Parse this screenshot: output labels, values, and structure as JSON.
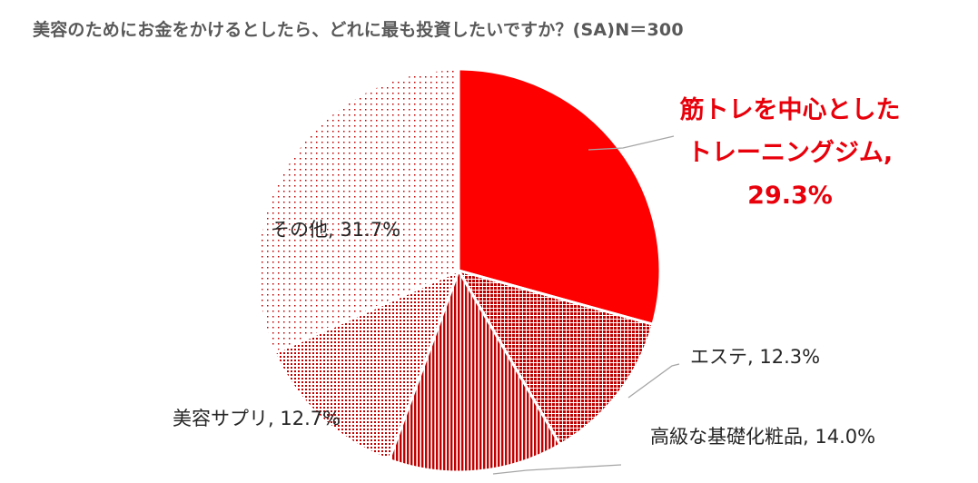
{
  "chart_data": {
    "type": "pie",
    "title": "美容のためにお金をかけるとしたら、どれに最も投資したいですか？(SA)N＝300",
    "slices": [
      {
        "category": "筋トレを中心としたトレーニングジム",
        "value": 29.3,
        "label_lines": [
          "筋トレを中心とした",
          "トレーニングジム,",
          "29.3%"
        ],
        "color": "#ff0000",
        "highlight": true
      },
      {
        "category": "エステ",
        "value": 12.3,
        "label_lines": [
          "エステ, 12.3%"
        ],
        "color": "#c00000"
      },
      {
        "category": "高級な基礎化粧品",
        "value": 14.0,
        "label_lines": [
          "高級な基礎化粧品, 14.0%"
        ],
        "color": "#c00000"
      },
      {
        "category": "美容サプリ",
        "value": 12.7,
        "label_lines": [
          "美容サプリ, 12.7%"
        ],
        "color": "#c00000"
      },
      {
        "category": "その他",
        "value": 31.7,
        "label_lines": [
          "その他, 31.7%"
        ],
        "color": "#c00000"
      }
    ]
  }
}
